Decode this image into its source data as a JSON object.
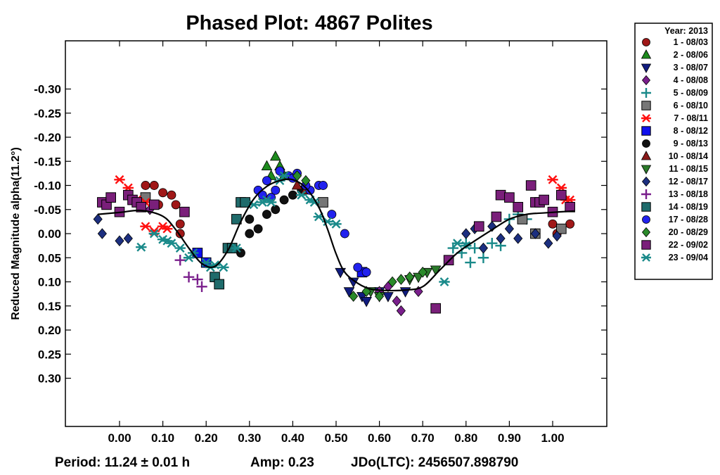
{
  "chart_data": {
    "type": "scatter",
    "title": "Phased Plot: 4867 Polites",
    "ylabel": "Reduced Magnitude alpha(11.2°)",
    "xlabel": "",
    "xlim": [
      -0.125,
      1.125
    ],
    "ylim": [
      0.4,
      -0.4
    ],
    "y_inverted": true,
    "x_ticks": [
      "0.00",
      "0.10",
      "0.20",
      "0.30",
      "0.40",
      "0.50",
      "0.60",
      "0.70",
      "0.80",
      "0.90",
      "1.00"
    ],
    "y_ticks": [
      "-0.30",
      "-0.25",
      "-0.20",
      "-0.15",
      "-0.10",
      "-0.05",
      "0.00",
      "0.05",
      "0.10",
      "0.15",
      "0.20",
      "0.25",
      "0.30"
    ],
    "legend_title": "Year: 2013",
    "legend_position": "outside-right",
    "footer": {
      "period": "Period: 11.24 ± 0.01 h",
      "amp": "Amp: 0.23",
      "jdo": "JDo(LTC): 2456507.898790"
    },
    "fit_curve": [
      [
        -0.05,
        -0.04
      ],
      [
        0.0,
        -0.044
      ],
      [
        0.05,
        -0.048
      ],
      [
        0.1,
        -0.036
      ],
      [
        0.13,
        -0.008
      ],
      [
        0.16,
        0.03
      ],
      [
        0.19,
        0.062
      ],
      [
        0.22,
        0.068
      ],
      [
        0.25,
        0.035
      ],
      [
        0.28,
        -0.025
      ],
      [
        0.31,
        -0.072
      ],
      [
        0.34,
        -0.098
      ],
      [
        0.37,
        -0.11
      ],
      [
        0.4,
        -0.112
      ],
      [
        0.43,
        -0.095
      ],
      [
        0.46,
        -0.055
      ],
      [
        0.48,
        -0.01
      ],
      [
        0.5,
        0.042
      ],
      [
        0.52,
        0.08
      ],
      [
        0.55,
        0.103
      ],
      [
        0.58,
        0.115
      ],
      [
        0.62,
        0.118
      ],
      [
        0.66,
        0.117
      ],
      [
        0.7,
        0.11
      ],
      [
        0.74,
        0.075
      ],
      [
        0.78,
        0.04
      ],
      [
        0.82,
        0.015
      ],
      [
        0.86,
        -0.008
      ],
      [
        0.9,
        -0.03
      ],
      [
        0.94,
        -0.04
      ],
      [
        0.98,
        -0.043
      ],
      [
        1.05,
        -0.047
      ]
    ],
    "series": [
      {
        "name": "1 - 08/03",
        "color": "#a01818",
        "marker": "circle",
        "points": [
          [
            0.06,
            -0.1
          ],
          [
            0.08,
            -0.1
          ],
          [
            0.1,
            -0.085
          ],
          [
            0.12,
            -0.08
          ],
          [
            0.09,
            -0.06
          ],
          [
            0.13,
            -0.06
          ],
          [
            0.14,
            -0.02
          ],
          [
            0.14,
            0.0
          ],
          [
            1.0,
            -0.02
          ],
          [
            1.01,
            0.0
          ],
          [
            1.04,
            -0.02
          ]
        ]
      },
      {
        "name": "2 - 08/06",
        "color": "#1d8a1d",
        "marker": "triangle-up",
        "points": [
          [
            0.34,
            -0.14
          ],
          [
            0.36,
            -0.16
          ],
          [
            0.37,
            -0.14
          ],
          [
            0.35,
            -0.12
          ],
          [
            0.38,
            -0.12
          ]
        ]
      },
      {
        "name": "3 - 08/07",
        "color": "#111c80",
        "marker": "triangle-down",
        "points": [
          [
            0.51,
            0.08
          ],
          [
            0.53,
            0.12
          ],
          [
            0.56,
            0.13
          ],
          [
            0.57,
            0.14
          ],
          [
            0.6,
            0.12
          ],
          [
            0.62,
            0.13
          ],
          [
            0.66,
            0.12
          ],
          [
            0.54,
            0.1
          ]
        ]
      },
      {
        "name": "4 - 08/08",
        "color": "#7a1f8c",
        "marker": "diamond",
        "points": [
          [
            0.07,
            -0.05
          ],
          [
            0.64,
            0.14
          ],
          [
            0.65,
            0.16
          ],
          [
            0.69,
            0.12
          ],
          [
            0.62,
            0.11
          ],
          [
            0.6,
            0.12
          ]
        ]
      },
      {
        "name": "5 - 08/09",
        "color": "#1a8a8a",
        "marker": "plus",
        "points": [
          [
            0.77,
            0.03
          ],
          [
            0.79,
            0.04
          ],
          [
            0.81,
            0.06
          ],
          [
            0.82,
            0.03
          ],
          [
            0.84,
            0.05
          ],
          [
            0.86,
            0.02
          ],
          [
            0.88,
            0.025
          ],
          [
            0.9,
            -0.03
          ],
          [
            0.92,
            -0.04
          ],
          [
            0.94,
            -0.03
          ],
          [
            0.8,
            0.02
          ]
        ]
      },
      {
        "name": "6 - 08/10",
        "color": "#777777",
        "marker": "square",
        "points": [
          [
            0.06,
            -0.075
          ],
          [
            0.93,
            -0.03
          ],
          [
            0.96,
            0.0
          ],
          [
            1.02,
            -0.01
          ],
          [
            0.47,
            -0.065
          ]
        ]
      },
      {
        "name": "7 - 08/11",
        "color": "#ff1010",
        "marker": "asterisk",
        "points": [
          [
            0.0,
            -0.112
          ],
          [
            0.02,
            -0.095
          ],
          [
            0.04,
            -0.07
          ],
          [
            0.06,
            -0.065
          ],
          [
            0.06,
            -0.015
          ],
          [
            0.08,
            -0.005
          ],
          [
            0.1,
            -0.015
          ],
          [
            0.11,
            -0.01
          ],
          [
            1.0,
            -0.112
          ],
          [
            1.02,
            -0.095
          ],
          [
            1.03,
            -0.07
          ],
          [
            1.04,
            -0.07
          ]
        ]
      },
      {
        "name": "8 - 08/12",
        "color": "#1010ee",
        "marker": "square",
        "points": [
          [
            0.18,
            0.04
          ],
          [
            0.2,
            0.06
          ],
          [
            0.26,
            0.03
          ],
          [
            0.56,
            0.08
          ]
        ]
      },
      {
        "name": "9 - 08/13",
        "color": "#111111",
        "marker": "circle",
        "points": [
          [
            0.28,
            0.04
          ],
          [
            0.3,
            0.0
          ],
          [
            0.32,
            -0.01
          ],
          [
            0.34,
            -0.04
          ],
          [
            0.36,
            -0.05
          ],
          [
            0.38,
            -0.07
          ],
          [
            0.4,
            -0.08
          ],
          [
            0.42,
            -0.09
          ],
          [
            0.3,
            -0.03
          ]
        ]
      },
      {
        "name": "10 - 08/14",
        "color": "#8a1a1a",
        "marker": "triangle-up",
        "points": [
          [
            0.41,
            -0.1
          ],
          [
            0.43,
            -0.09
          ]
        ]
      },
      {
        "name": "11 - 08/15",
        "color": "#2a7a2a",
        "marker": "triangle-down",
        "points": [
          [
            0.58,
            0.12
          ],
          [
            0.6,
            0.13
          ],
          [
            0.67,
            0.095
          ],
          [
            0.69,
            0.09
          ],
          [
            0.71,
            0.08
          ],
          [
            0.73,
            0.075
          ]
        ]
      },
      {
        "name": "12 - 08/17",
        "color": "#1c2f80",
        "marker": "diamond",
        "points": [
          [
            -0.05,
            -0.03
          ],
          [
            -0.04,
            0.0
          ],
          [
            0.0,
            0.015
          ],
          [
            0.02,
            0.01
          ],
          [
            0.8,
            0.0
          ],
          [
            0.82,
            -0.01
          ],
          [
            0.84,
            0.03
          ],
          [
            0.86,
            -0.015
          ],
          [
            0.88,
            0.01
          ],
          [
            0.9,
            -0.01
          ],
          [
            0.92,
            0.01
          ],
          [
            0.96,
            0.0
          ],
          [
            0.99,
            0.02
          ],
          [
            1.01,
            0.005
          ]
        ]
      },
      {
        "name": "13 - 08/18",
        "color": "#7a1f8c",
        "marker": "plus",
        "points": [
          [
            0.14,
            0.055
          ],
          [
            0.16,
            0.09
          ],
          [
            0.18,
            0.095
          ],
          [
            0.19,
            0.11
          ]
        ]
      },
      {
        "name": "14 - 08/19",
        "color": "#1f6b6b",
        "marker": "square",
        "points": [
          [
            0.22,
            0.09
          ],
          [
            0.23,
            0.105
          ],
          [
            0.25,
            0.03
          ],
          [
            0.26,
            0.03
          ],
          [
            0.27,
            -0.03
          ],
          [
            0.28,
            -0.065
          ],
          [
            0.29,
            -0.065
          ]
        ]
      },
      {
        "name": "17 - 08/28",
        "color": "#2222ee",
        "marker": "circle",
        "points": [
          [
            0.32,
            -0.09
          ],
          [
            0.33,
            -0.08
          ],
          [
            0.34,
            -0.11
          ],
          [
            0.37,
            -0.13
          ],
          [
            0.39,
            -0.12
          ],
          [
            0.4,
            -0.115
          ],
          [
            0.41,
            -0.125
          ],
          [
            0.44,
            -0.09
          ],
          [
            0.46,
            -0.1
          ],
          [
            0.47,
            -0.1
          ],
          [
            0.49,
            -0.04
          ],
          [
            0.52,
            0.0
          ],
          [
            0.55,
            0.07
          ],
          [
            0.57,
            0.08
          ],
          [
            0.35,
            -0.075
          ],
          [
            0.36,
            -0.09
          ],
          [
            0.43,
            -0.1
          ]
        ]
      },
      {
        "name": "20 - 08/29",
        "color": "#2a8a2a",
        "marker": "diamond",
        "points": [
          [
            0.41,
            -0.12
          ],
          [
            0.43,
            -0.11
          ],
          [
            0.54,
            0.13
          ],
          [
            0.57,
            0.12
          ],
          [
            0.6,
            0.13
          ],
          [
            0.63,
            0.1
          ],
          [
            0.65,
            0.095
          ],
          [
            0.67,
            0.09
          ],
          [
            0.7,
            0.08
          ]
        ]
      },
      {
        "name": "22 - 09/02",
        "color": "#7a1f7a",
        "marker": "square",
        "points": [
          [
            -0.04,
            -0.065
          ],
          [
            -0.03,
            -0.06
          ],
          [
            -0.02,
            -0.075
          ],
          [
            0.0,
            -0.045
          ],
          [
            0.02,
            -0.08
          ],
          [
            0.03,
            -0.07
          ],
          [
            0.04,
            -0.065
          ],
          [
            0.05,
            -0.055
          ],
          [
            0.08,
            -0.06
          ],
          [
            0.15,
            -0.045
          ],
          [
            0.73,
            0.155
          ],
          [
            0.76,
            0.055
          ],
          [
            0.88,
            -0.08
          ],
          [
            0.9,
            -0.075
          ],
          [
            0.92,
            -0.055
          ],
          [
            0.95,
            -0.1
          ],
          [
            0.96,
            -0.065
          ],
          [
            0.97,
            -0.065
          ],
          [
            0.98,
            -0.07
          ],
          [
            1.0,
            -0.045
          ],
          [
            1.02,
            -0.08
          ],
          [
            1.04,
            -0.055
          ],
          [
            0.87,
            -0.035
          ],
          [
            0.83,
            -0.015
          ]
        ]
      },
      {
        "name": "23 - 09/04",
        "color": "#1a8a8a",
        "marker": "asterisk",
        "points": [
          [
            0.05,
            0.028
          ],
          [
            0.08,
            0.0
          ],
          [
            0.1,
            0.012
          ],
          [
            0.11,
            0.015
          ],
          [
            0.12,
            0.02
          ],
          [
            0.14,
            0.03
          ],
          [
            0.16,
            0.05
          ],
          [
            0.17,
            0.04
          ],
          [
            0.2,
            0.06
          ],
          [
            0.21,
            0.07
          ],
          [
            0.22,
            0.065
          ],
          [
            0.24,
            0.07
          ],
          [
            0.27,
            0.03
          ],
          [
            0.31,
            -0.06
          ],
          [
            0.33,
            -0.065
          ],
          [
            0.34,
            -0.07
          ],
          [
            0.37,
            -0.11
          ],
          [
            0.38,
            -0.12
          ],
          [
            0.42,
            -0.08
          ],
          [
            0.44,
            -0.07
          ],
          [
            0.45,
            -0.065
          ],
          [
            0.46,
            -0.035
          ],
          [
            0.48,
            -0.025
          ],
          [
            0.5,
            -0.02
          ],
          [
            0.75,
            0.1
          ],
          [
            0.78,
            0.02
          ],
          [
            0.8,
            0.025
          ],
          [
            0.35,
            -0.065
          ]
        ]
      }
    ]
  }
}
